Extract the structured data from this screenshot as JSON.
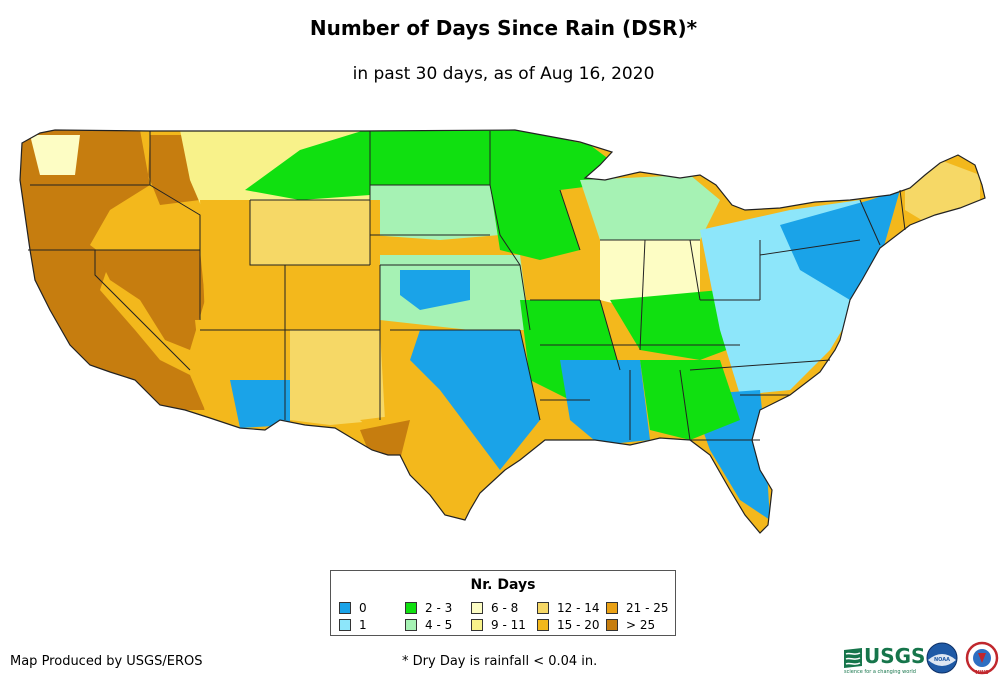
{
  "map": {
    "title": "Number of Days Since Rain (DSR)*",
    "subtitle": "in past 30 days, as of Aug 16, 2020"
  },
  "legend": {
    "title": "Nr. Days",
    "items": [
      {
        "label": "0",
        "color": "#1aa3e8"
      },
      {
        "label": "1",
        "color": "#8de6fa"
      },
      {
        "label": "2 - 3",
        "color": "#10e010"
      },
      {
        "label": "4 - 5",
        "color": "#a6f2b4"
      },
      {
        "label": "6 - 8",
        "color": "#fdfdc4"
      },
      {
        "label": "9 - 11",
        "color": "#f8f28a"
      },
      {
        "label": "12 - 14",
        "color": "#f6d866"
      },
      {
        "label": "15 - 20",
        "color": "#f3b81c"
      },
      {
        "label": "21 - 25",
        "color": "#eaa115"
      },
      {
        "label": "> 25",
        "color": "#c67d0f"
      }
    ]
  },
  "footer": {
    "credit": "Map Produced by USGS/EROS",
    "note": "* Dry Day is rainfall < 0.04 in."
  },
  "logos": {
    "usgs": "USGS",
    "usgs_tagline": "science for a changing world",
    "noaa": "NOAA",
    "nws": "NWS"
  }
}
